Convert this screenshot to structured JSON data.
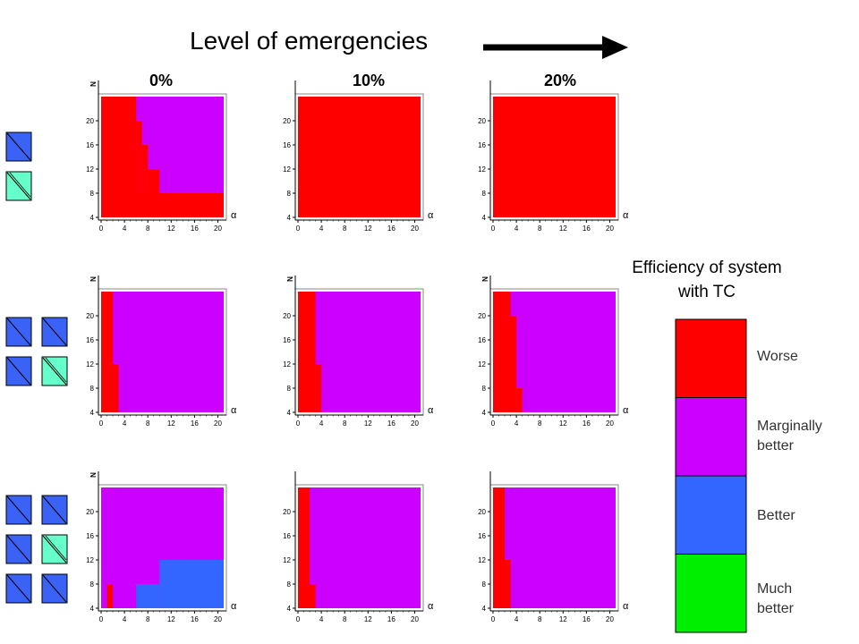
{
  "headline": "Level of emergencies",
  "columns": [
    "0%",
    "10%",
    "20%"
  ],
  "colors": {
    "worse": "#ff0000",
    "marginally_better": "#cc00ff",
    "better": "#3366ff",
    "much_better": "#00ee00",
    "agent_dark": "#3a62f5",
    "agent_light": "#66ffcc",
    "arrow": "#000000"
  },
  "legend": {
    "title_line1": "Efficiency of system",
    "title_line2": "with TC",
    "items": [
      {
        "line1": "Worse",
        "line2": "",
        "color": "#ff0000"
      },
      {
        "line1": "Marginally",
        "line2": "better",
        "color": "#cc00ff"
      },
      {
        "line1": "Better",
        "line2": "",
        "color": "#3366ff"
      },
      {
        "line1": "Much",
        "line2": "better",
        "color": "#00ee00"
      }
    ]
  },
  "row_icons": [
    [
      [
        "dark"
      ],
      [
        "light"
      ]
    ],
    [
      [
        "dark",
        "dark"
      ],
      [
        "dark",
        "light"
      ]
    ],
    [
      [
        "dark",
        "dark"
      ],
      [
        "dark",
        "light"
      ],
      [
        "dark",
        "dark"
      ]
    ]
  ],
  "chart_data": {
    "type": "heatmap",
    "xlabel": "α",
    "ylabel": "N",
    "xlim": [
      0,
      21
    ],
    "ylim": [
      4,
      24
    ],
    "xticks": [
      0,
      4,
      8,
      12,
      16,
      20
    ],
    "yticks": [
      4,
      8,
      12,
      16,
      20
    ],
    "levels": [
      "Worse",
      "Marginally better",
      "Better",
      "Much better"
    ],
    "grid": false,
    "panels": [
      {
        "row": 0,
        "col": "0%",
        "background": "Marginally better",
        "show_ylabel": true,
        "regions": [
          {
            "level": "Worse",
            "x": [
              0,
              6
            ],
            "y": [
              8,
              24
            ]
          },
          {
            "level": "Worse",
            "x": [
              6,
              7
            ],
            "y": [
              8,
              20
            ]
          },
          {
            "level": "Worse",
            "x": [
              7,
              8
            ],
            "y": [
              8,
              16
            ]
          },
          {
            "level": "Worse",
            "x": [
              8,
              10
            ],
            "y": [
              8,
              12
            ]
          },
          {
            "level": "Worse",
            "x": [
              0,
              21
            ],
            "y": [
              4,
              8
            ]
          }
        ]
      },
      {
        "row": 0,
        "col": "10%",
        "background": "Worse",
        "show_ylabel": false,
        "regions": []
      },
      {
        "row": 0,
        "col": "20%",
        "background": "Worse",
        "show_ylabel": false,
        "regions": []
      },
      {
        "row": 1,
        "col": "0%",
        "background": "Marginally better",
        "show_ylabel": true,
        "regions": [
          {
            "level": "Worse",
            "x": [
              0,
              2
            ],
            "y": [
              4,
              24
            ]
          },
          {
            "level": "Worse",
            "x": [
              2,
              3
            ],
            "y": [
              4,
              12
            ]
          }
        ]
      },
      {
        "row": 1,
        "col": "10%",
        "background": "Marginally better",
        "show_ylabel": true,
        "regions": [
          {
            "level": "Worse",
            "x": [
              0,
              3
            ],
            "y": [
              4,
              24
            ]
          },
          {
            "level": "Worse",
            "x": [
              3,
              4
            ],
            "y": [
              4,
              12
            ]
          }
        ]
      },
      {
        "row": 1,
        "col": "20%",
        "background": "Marginally better",
        "show_ylabel": true,
        "regions": [
          {
            "level": "Worse",
            "x": [
              0,
              3
            ],
            "y": [
              4,
              24
            ]
          },
          {
            "level": "Worse",
            "x": [
              3,
              4
            ],
            "y": [
              4,
              20
            ]
          },
          {
            "level": "Worse",
            "x": [
              4,
              5
            ],
            "y": [
              4,
              8
            ]
          }
        ]
      },
      {
        "row": 2,
        "col": "0%",
        "background": "Marginally better",
        "show_ylabel": true,
        "regions": [
          {
            "level": "Better",
            "x": [
              10,
              21
            ],
            "y": [
              4,
              12
            ]
          },
          {
            "level": "Better",
            "x": [
              6,
              10
            ],
            "y": [
              4,
              8
            ]
          },
          {
            "level": "Worse",
            "x": [
              1,
              2
            ],
            "y": [
              4,
              8
            ]
          }
        ]
      },
      {
        "row": 2,
        "col": "10%",
        "background": "Marginally better",
        "show_ylabel": false,
        "regions": [
          {
            "level": "Worse",
            "x": [
              0,
              2
            ],
            "y": [
              4,
              24
            ]
          },
          {
            "level": "Worse",
            "x": [
              2,
              3
            ],
            "y": [
              4,
              8
            ]
          }
        ]
      },
      {
        "row": 2,
        "col": "20%",
        "background": "Marginally better",
        "show_ylabel": false,
        "regions": [
          {
            "level": "Worse",
            "x": [
              0,
              2
            ],
            "y": [
              4,
              24
            ]
          },
          {
            "level": "Worse",
            "x": [
              2,
              3
            ],
            "y": [
              4,
              12
            ]
          }
        ]
      }
    ]
  }
}
